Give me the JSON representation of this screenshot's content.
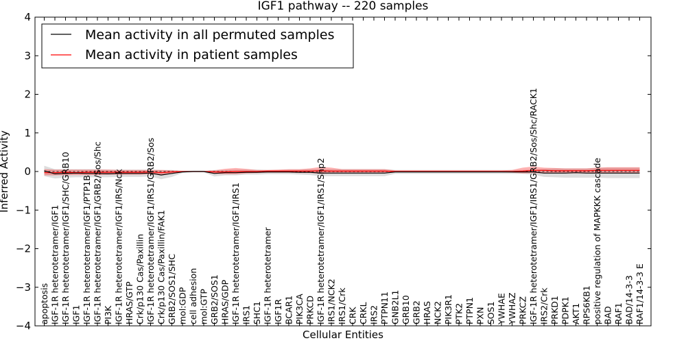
{
  "chart_data": {
    "type": "line",
    "title": "IGF1 pathway -- 220 samples",
    "xlabel": "Cellular Entities",
    "ylabel": "Inferred Activity",
    "ylim": [
      -4,
      4
    ],
    "yticks": [
      -4,
      -3,
      -2,
      -1,
      0,
      1,
      2,
      3,
      4
    ],
    "ytick_labels": [
      "−4",
      "−3",
      "−2",
      "−1",
      "0",
      "1",
      "2",
      "3",
      "4"
    ],
    "legend": {
      "location": "top-left",
      "entries": [
        {
          "label": "Mean activity in all permuted samples",
          "color": "#000000"
        },
        {
          "label": "Mean activity in patient samples",
          "color": "#ff0000"
        }
      ]
    },
    "categories": [
      "apoptosis",
      "IGF-1R heterotetramer/IGF1",
      "IGF-1R heterotetramer/IGF1/SHC/GRB10",
      "IGF1",
      "IGF-1R heterotetramer/IGF1/PTP1B",
      "IGF-1R heterotetramer/IGF1/GRB2/Sos/Shc",
      "PI3K",
      "IGF-1R heterotetramer/IGF1/IRS/Nck",
      "HRAS/GTP",
      "Crk/p130 Cas/Paxillin",
      "IGF-1R heterotetramer/IGF1/IRS1/GRB2/Sos",
      "Crk/p130 Cas/Paxillin/FAK1",
      "GRB2/SOS1/SHC",
      "mol:GDP",
      "cell adhesion",
      "mol:GTP",
      "GRB2/SOS1",
      "HRAS/GDP",
      "IGF-1R heterotetramer/IGF1/IRS1",
      "IRS1",
      "SHC1",
      "IGF-1R heterotetramer",
      "IGF1R",
      "BCAR1",
      "PIK3CA",
      "PRKCD",
      "IGF-1R heterotetramer/IGF1/IRS1/Shp2",
      "IRS1/NCK2",
      "IRS1/Crk",
      "CRK",
      "CRKL",
      "IRS2",
      "PTPN11",
      "GNB2L1",
      "GRB10",
      "GRB2",
      "HRAS",
      "NCK2",
      "PIK3R1",
      "PTK2",
      "PTPN1",
      "PXN",
      "SOS1",
      "YWHAE",
      "YWHAZ",
      "PRKCZ",
      "IGF-1R heterotetramer/IGF1/IRS1/GRB2/Sos/Shc/RACK1",
      "IRS2/Crk",
      "PRKD1",
      "PDPK1",
      "AKT1",
      "RPS6KB1",
      "positive regulation of MAPKKK cascade",
      "BAD",
      "RAF1",
      "BAD/14-3-3",
      "RAF1/14-3-3 E"
    ],
    "series": [
      {
        "name": "Mean activity in all permuted samples",
        "color": "#000000",
        "values": [
          0.02,
          -0.06,
          -0.05,
          -0.04,
          -0.05,
          -0.05,
          -0.06,
          -0.05,
          -0.05,
          -0.05,
          -0.04,
          -0.09,
          -0.05,
          -0.01,
          0,
          0,
          -0.05,
          -0.03,
          -0.03,
          -0.02,
          -0.02,
          -0.01,
          -0.01,
          -0.01,
          -0.02,
          -0.02,
          -0.04,
          -0.04,
          -0.04,
          -0.04,
          -0.04,
          -0.04,
          -0.04,
          -0.01,
          -0.01,
          -0.01,
          -0.01,
          -0.01,
          -0.01,
          -0.01,
          -0.01,
          -0.01,
          -0.01,
          -0.01,
          -0.01,
          -0.01,
          -0.01,
          -0.04,
          -0.04,
          -0.04,
          -0.03,
          -0.04,
          -0.04,
          -0.04,
          -0.04,
          -0.04,
          -0.04
        ],
        "band": {
          "upper": [
            0.15,
            0.06,
            0.06,
            0.06,
            0.06,
            0.06,
            0.05,
            0.05,
            0.05,
            0.05,
            0.05,
            0.04,
            0.04,
            0.02,
            0.02,
            0.02,
            0.04,
            0.04,
            0.05,
            0.05,
            0.05,
            0.04,
            0.04,
            0.05,
            0.05,
            0.06,
            0.06,
            0.06,
            0.06,
            0.06,
            0.06,
            0.06,
            0.06,
            0.04,
            0.04,
            0.04,
            0.04,
            0.04,
            0.04,
            0.04,
            0.04,
            0.04,
            0.04,
            0.04,
            0.04,
            0.04,
            0.05,
            0.07,
            0.08,
            0.08,
            0.08,
            0.08,
            0.09,
            0.1,
            0.1,
            0.1,
            0.1
          ],
          "lower": [
            -0.12,
            -0.18,
            -0.16,
            -0.15,
            -0.15,
            -0.15,
            -0.15,
            -0.14,
            -0.14,
            -0.14,
            -0.13,
            -0.2,
            -0.14,
            -0.04,
            -0.02,
            -0.02,
            -0.13,
            -0.1,
            -0.1,
            -0.08,
            -0.08,
            -0.07,
            -0.07,
            -0.07,
            -0.08,
            -0.09,
            -0.12,
            -0.12,
            -0.12,
            -0.12,
            -0.12,
            -0.12,
            -0.12,
            -0.06,
            -0.06,
            -0.06,
            -0.06,
            -0.06,
            -0.06,
            -0.06,
            -0.06,
            -0.06,
            -0.06,
            -0.06,
            -0.06,
            -0.06,
            -0.08,
            -0.14,
            -0.15,
            -0.16,
            -0.16,
            -0.16,
            -0.16,
            -0.17,
            -0.17,
            -0.17,
            -0.17
          ]
        }
      },
      {
        "name": "Mean activity in patient samples",
        "color": "#ff0000",
        "values": [
          -0.03,
          -0.03,
          -0.02,
          -0.03,
          -0.02,
          -0.02,
          -0.02,
          -0.02,
          -0.02,
          -0.02,
          -0.01,
          -0.03,
          -0.01,
          0,
          0,
          0,
          -0.01,
          -0.01,
          0,
          0,
          0,
          0.01,
          0.01,
          0.01,
          0.01,
          0.01,
          0.02,
          0.01,
          0.01,
          0.01,
          0.01,
          0.01,
          0.01,
          0,
          0,
          0,
          0,
          0,
          0,
          0,
          0,
          0,
          0,
          0,
          0,
          0.01,
          0.03,
          0.03,
          0.02,
          0.02,
          0.02,
          0.02,
          0.03,
          0.03,
          0.03,
          0.03,
          0.03
        ],
        "band": {
          "upper": [
            0.06,
            0.05,
            0.05,
            0.05,
            0.05,
            0.05,
            0.05,
            0.04,
            0.04,
            0.04,
            0.04,
            0.04,
            0.03,
            0.01,
            0.01,
            0.01,
            0.03,
            0.07,
            0.09,
            0.07,
            0.04,
            0.04,
            0.05,
            0.06,
            0.06,
            0.08,
            0.12,
            0.1,
            0.06,
            0.06,
            0.06,
            0.06,
            0.06,
            0.03,
            0.03,
            0.03,
            0.03,
            0.03,
            0.03,
            0.03,
            0.03,
            0.03,
            0.03,
            0.03,
            0.04,
            0.1,
            0.13,
            0.1,
            0.09,
            0.08,
            0.08,
            0.08,
            0.1,
            0.11,
            0.11,
            0.11,
            0.11
          ],
          "lower": [
            -0.1,
            -0.1,
            -0.09,
            -0.09,
            -0.09,
            -0.09,
            -0.08,
            -0.08,
            -0.08,
            -0.08,
            -0.07,
            -0.09,
            -0.06,
            -0.02,
            -0.01,
            -0.01,
            -0.06,
            -0.07,
            -0.07,
            -0.05,
            -0.04,
            -0.03,
            -0.03,
            -0.03,
            -0.04,
            -0.04,
            -0.06,
            -0.05,
            -0.04,
            -0.04,
            -0.04,
            -0.04,
            -0.04,
            -0.02,
            -0.02,
            -0.02,
            -0.02,
            -0.02,
            -0.02,
            -0.02,
            -0.02,
            -0.02,
            -0.02,
            -0.02,
            -0.03,
            -0.05,
            -0.04,
            -0.05,
            -0.05,
            -0.05,
            -0.05,
            -0.05,
            -0.05,
            -0.05,
            -0.05,
            -0.05,
            -0.05
          ]
        }
      }
    ]
  }
}
